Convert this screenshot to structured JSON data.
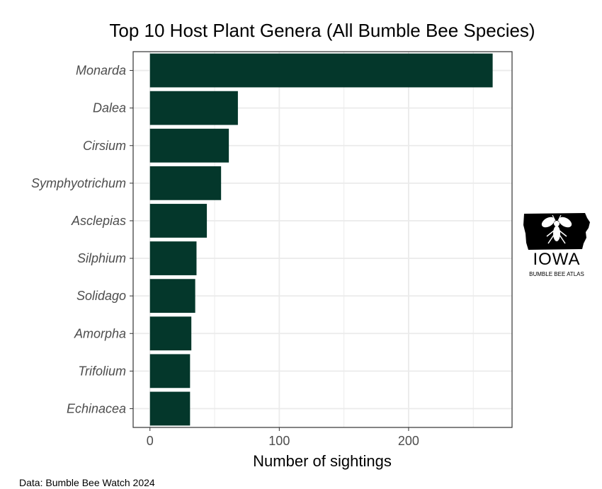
{
  "chart_data": {
    "type": "bar",
    "orientation": "horizontal",
    "title": "Top 10 Host Plant Genera (All Bumble Bee Species)",
    "xlabel": "Number of sightings",
    "ylabel": "",
    "categories": [
      "Monarda",
      "Dalea",
      "Cirsium",
      "Symphyotrichum",
      "Asclepias",
      "Silphium",
      "Solidago",
      "Amorpha",
      "Trifolium",
      "Echinacea"
    ],
    "values": [
      265,
      68,
      61,
      55,
      44,
      36,
      35,
      32,
      31,
      31
    ],
    "xlim": [
      -13,
      280
    ],
    "xticks": [
      0,
      100,
      200
    ],
    "grid": true,
    "bar_color": "#04372b"
  },
  "caption": "Data: Bumble Bee Watch 2024",
  "logo": {
    "word": "IOWA",
    "subtitle": "BUMBLE BEE ATLAS"
  }
}
